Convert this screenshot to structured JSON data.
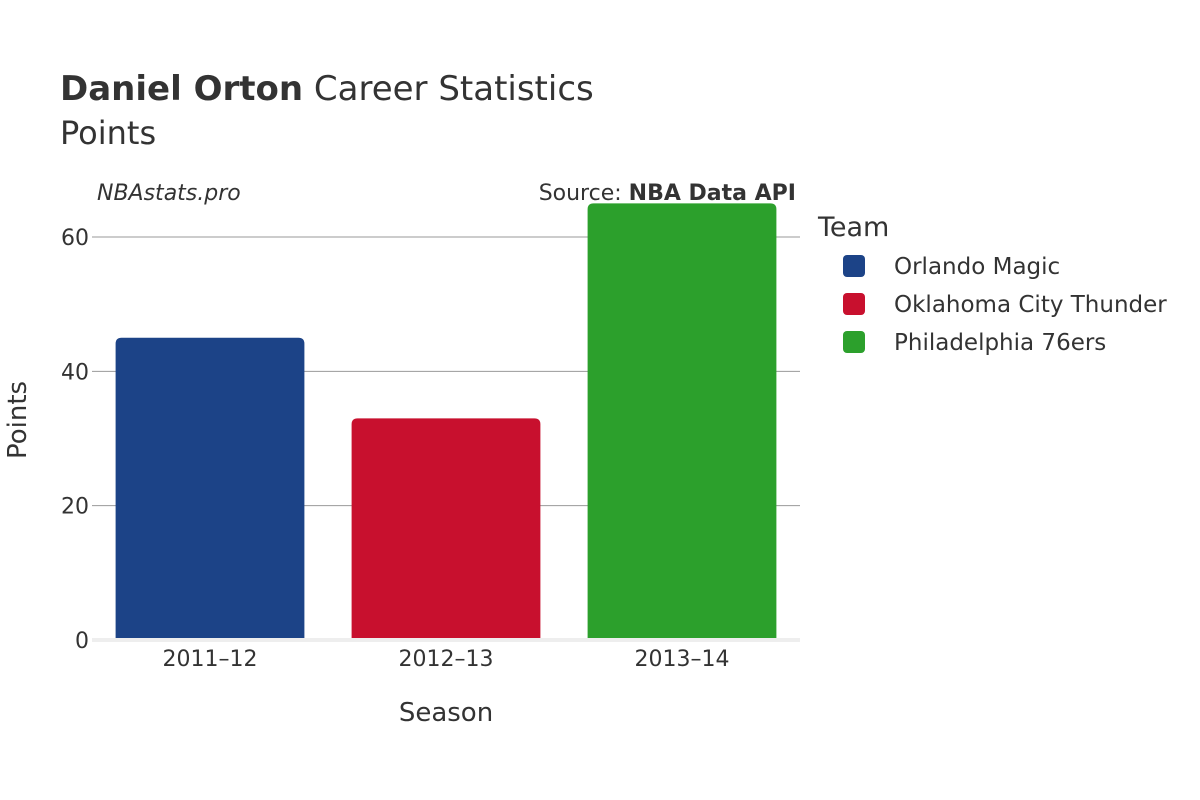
{
  "chart_data": {
    "type": "bar",
    "title_player": "Daniel Orton",
    "title_rest": " Career Statistics",
    "subtitle": "Points",
    "watermark": "NBAstats.pro",
    "source_prefix": "Source: ",
    "source_name": "NBA Data API",
    "xlabel": "Season",
    "ylabel": "Points",
    "ylim": [
      0,
      67
    ],
    "yticks": [
      0,
      20,
      40,
      60
    ],
    "grid": true,
    "legend_title": "Team",
    "legend_position": "right",
    "categories": [
      "2011–12",
      "2012–13",
      "2013–14"
    ],
    "series": [
      {
        "name": "Orlando Magic",
        "color": "#1c4387",
        "category": "2011–12",
        "value": 45
      },
      {
        "name": "Oklahoma City Thunder",
        "color": "#c8102e",
        "category": "2012–13",
        "value": 33
      },
      {
        "name": "Philadelphia 76ers",
        "color": "#2ca02c",
        "category": "2013–14",
        "value": 65
      }
    ]
  }
}
